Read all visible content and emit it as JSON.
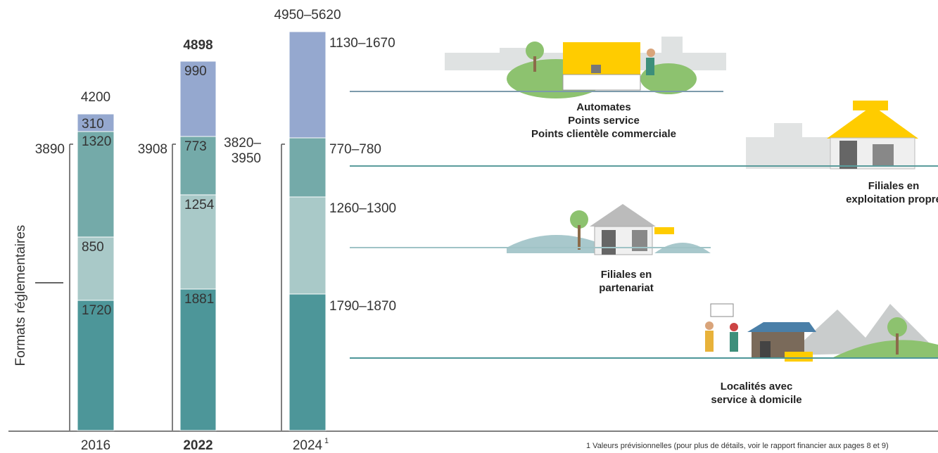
{
  "y_axis_label": "Formats réglementaires",
  "columns": [
    {
      "year": "2016",
      "total": 4200,
      "regulated": [
        3890
      ],
      "segments": [
        310,
        1320,
        850,
        1720
      ]
    },
    {
      "year": "2022",
      "total": 4898,
      "regulated": [
        3908
      ],
      "segments": [
        990,
        773,
        1254,
        1881
      ]
    },
    {
      "year": "2024",
      "footnote_mark": "1",
      "total": "4950–5620",
      "regulated": [
        "3820–",
        "3950"
      ],
      "segments": []
    }
  ],
  "categories": [
    {
      "range": "1130–1670",
      "label": [
        "Automates",
        "Points service",
        "Points clientèle commerciale"
      ]
    },
    {
      "range": "770–780",
      "label": [
        "Filiales en",
        "exploitation propre"
      ]
    },
    {
      "range": "1260–1300",
      "label": [
        "Filiales en",
        "partenariat"
      ]
    },
    {
      "range": "1790–1870",
      "label": [
        "Localités avec",
        "service à domicile"
      ]
    }
  ],
  "footnote": "1  Valeurs prévisionnelles (pour plus de détails, voir le rapport financier aux pages 8 et 9)"
}
